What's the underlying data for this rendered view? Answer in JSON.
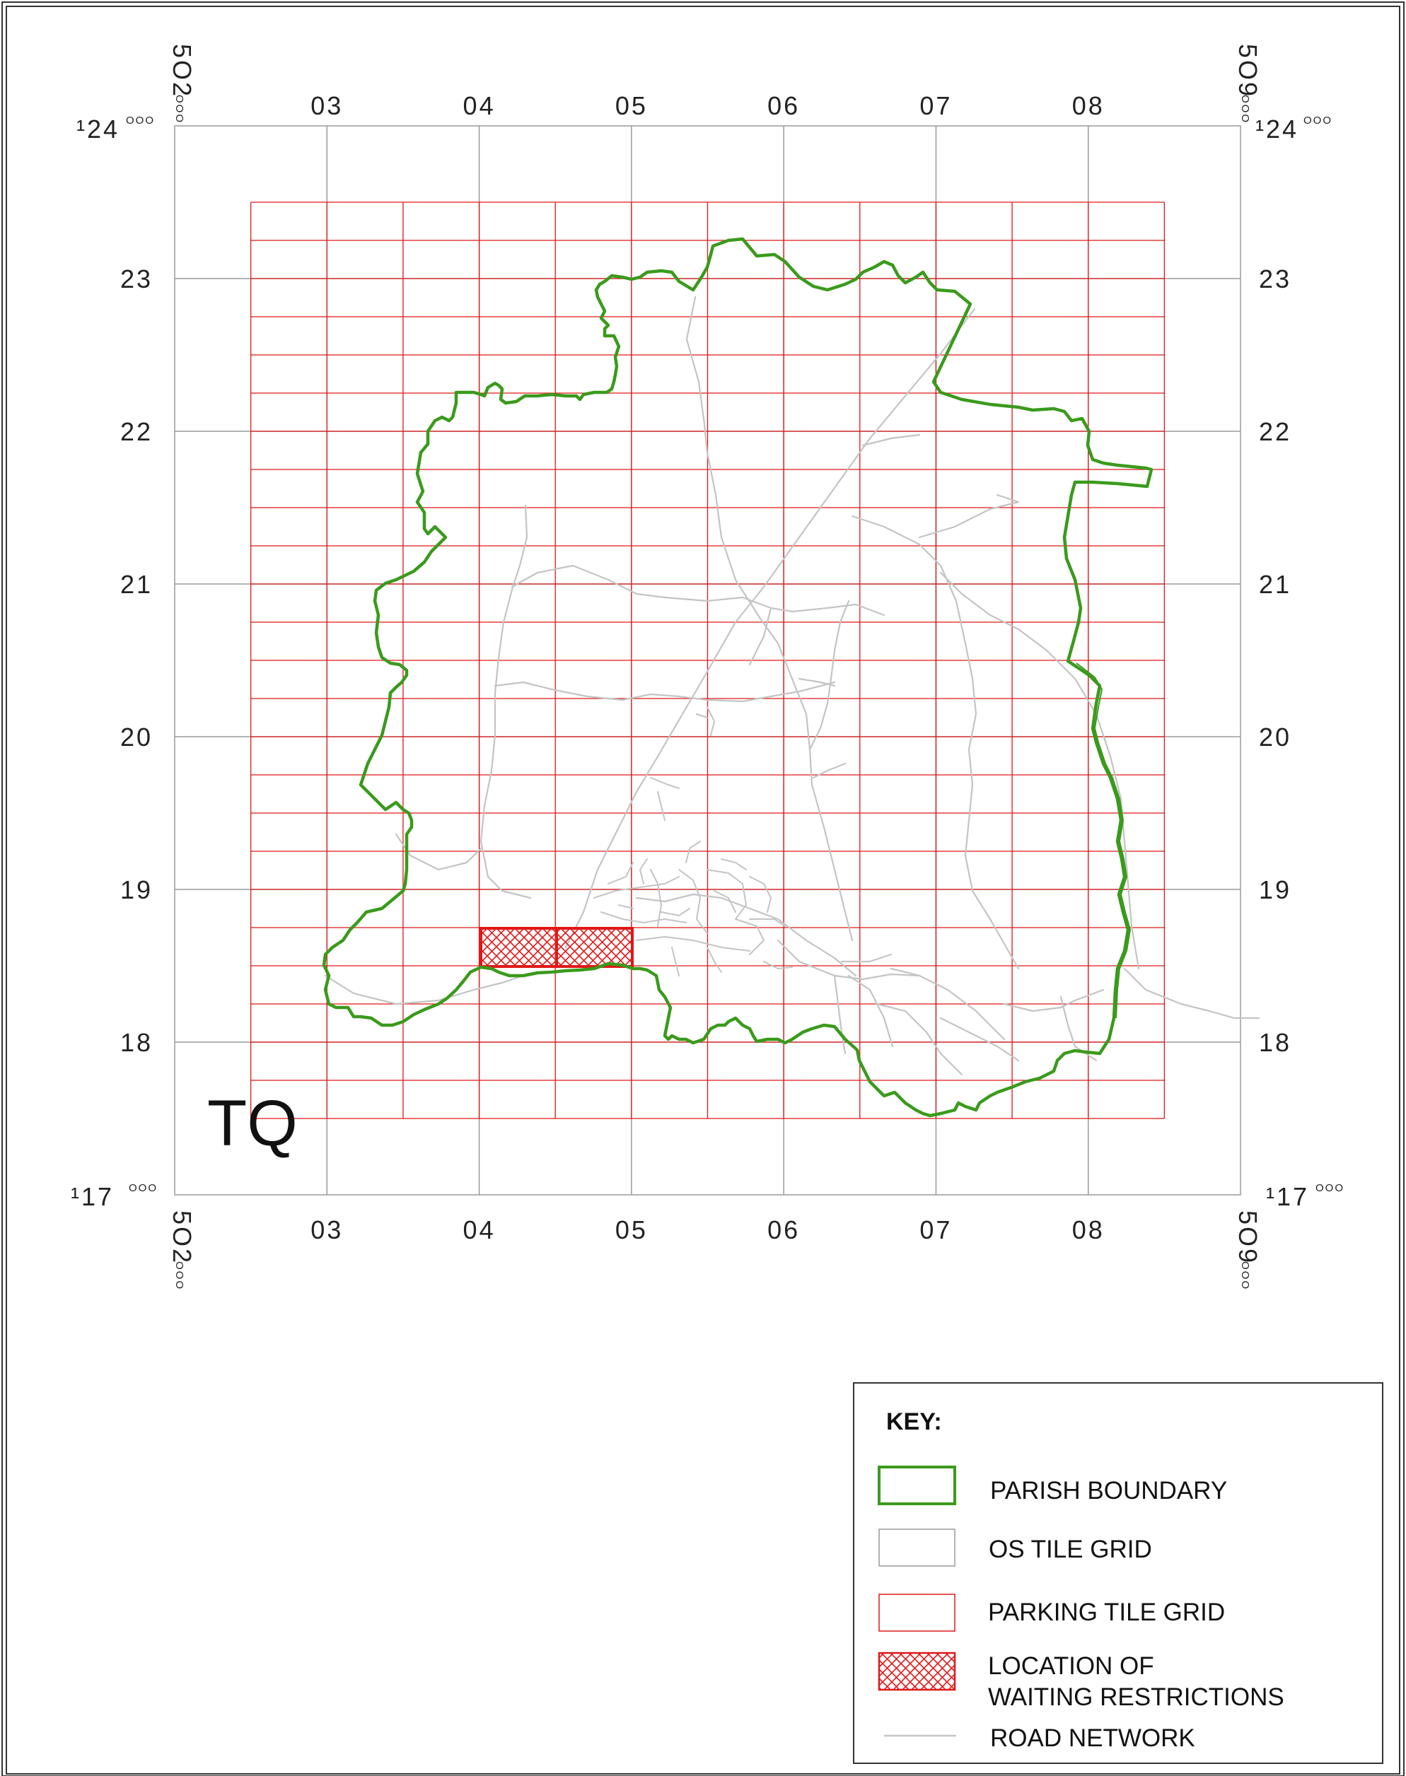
{
  "map": {
    "grid_square": "TQ",
    "eastings": [
      "03",
      "04",
      "05",
      "06",
      "07",
      "08"
    ],
    "northings": [
      "23",
      "22",
      "21",
      "20",
      "19",
      "18"
    ],
    "corner_labels": {
      "west_easting": {
        "main": "5O2",
        "small": "OOO"
      },
      "east_easting": {
        "main": "5O9",
        "small": "OOO"
      },
      "north_northing": {
        "main": "¹24",
        "small": "OOO"
      },
      "south_northing": {
        "main": "¹17",
        "small": "OOO"
      }
    },
    "colors": {
      "parish_boundary": "#3a9a1c",
      "os_tile_grid": "#9a9a9a",
      "parking_tile_grid": "#e01818",
      "waiting_restrictions": "#e01818",
      "road_network": "#c4c4c4"
    }
  },
  "key": {
    "title": "KEY:",
    "items": [
      {
        "label": "PARISH BOUNDARY",
        "icon": "green-outline-rectangle"
      },
      {
        "label": "OS TILE GRID",
        "icon": "grey-outline-rectangle"
      },
      {
        "label": "PARKING TILE GRID",
        "icon": "red-outline-rectangle"
      },
      {
        "label_line1": "LOCATION OF",
        "label_line2": "WAITING RESTRICTIONS",
        "icon": "red-crosshatch-rectangle"
      },
      {
        "label": "ROAD NETWORK",
        "icon": "grey-line"
      }
    ]
  }
}
